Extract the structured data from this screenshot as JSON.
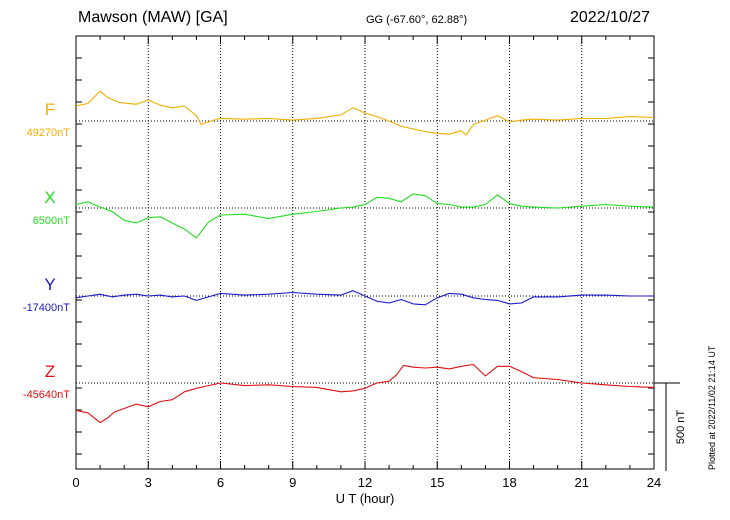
{
  "header": {
    "station": "Mawson (MAW)  [GA]",
    "coords": "GG (-67.60°,  62.88°)",
    "date": "2022/10/27"
  },
  "footer": {
    "plotted": "Plotted at 2022/11/02 21:14 UT"
  },
  "chart_data": {
    "type": "line",
    "xlabel": "U T (hour)",
    "xlim": [
      0,
      24
    ],
    "x_ticks": [
      0,
      3,
      6,
      9,
      12,
      15,
      18,
      21,
      24
    ],
    "scale_bar": {
      "value_nT": 500,
      "label": "500 nT"
    },
    "grid": true,
    "series": [
      {
        "name": "F",
        "baseline_label": "49270nT",
        "baseline": 49270,
        "color": "#f0b000",
        "x": [
          0,
          0.5,
          1,
          1.3,
          1.8,
          2.5,
          3,
          3.5,
          4,
          4.5,
          5,
          5.2,
          5.6,
          6,
          7,
          8,
          9,
          10,
          11,
          11.5,
          12,
          12.5,
          13,
          13.5,
          14,
          14.5,
          15,
          15.5,
          16,
          16.2,
          16.5,
          17,
          17.5,
          18,
          18.5,
          19,
          20,
          21,
          22,
          23,
          24
        ],
        "values": [
          49355,
          49370,
          49440,
          49405,
          49375,
          49365,
          49390,
          49360,
          49345,
          49355,
          49300,
          49250,
          49270,
          49285,
          49280,
          49285,
          49275,
          49285,
          49305,
          49345,
          49315,
          49295,
          49270,
          49240,
          49225,
          49210,
          49200,
          49195,
          49215,
          49190,
          49250,
          49275,
          49300,
          49265,
          49275,
          49280,
          49275,
          49285,
          49285,
          49295,
          49290
        ]
      },
      {
        "name": "X",
        "baseline_label": "6500nT",
        "baseline": 6500,
        "color": "#22dd22",
        "x": [
          0,
          0.5,
          1,
          1.5,
          2,
          2.5,
          3,
          3.5,
          4,
          4.5,
          5,
          5.5,
          6,
          7,
          8,
          9,
          10,
          11,
          11.5,
          12,
          12.5,
          13,
          13.5,
          14,
          14.5,
          15,
          15.5,
          16,
          16.5,
          17,
          17.5,
          18,
          18.5,
          19,
          20,
          21,
          22,
          23,
          24
        ],
        "values": [
          6520,
          6535,
          6505,
          6480,
          6430,
          6415,
          6445,
          6450,
          6415,
          6380,
          6330,
          6420,
          6460,
          6465,
          6440,
          6465,
          6480,
          6500,
          6505,
          6520,
          6560,
          6555,
          6535,
          6580,
          6570,
          6525,
          6520,
          6505,
          6505,
          6520,
          6575,
          6525,
          6510,
          6505,
          6500,
          6510,
          6520,
          6510,
          6505
        ]
      },
      {
        "name": "Y",
        "baseline_label": "-17400nT",
        "baseline": -17400,
        "color": "#1a1acc",
        "x": [
          0,
          0.5,
          1,
          1.5,
          2,
          2.5,
          3,
          3.5,
          4,
          4.5,
          5,
          5.5,
          6,
          7,
          8,
          9,
          10,
          11,
          11.5,
          12,
          12.5,
          13,
          13.5,
          14,
          14.5,
          15,
          15.5,
          16,
          16.5,
          17,
          17.5,
          18,
          18.5,
          19,
          20,
          21,
          22,
          23,
          24
        ],
        "values": [
          -17410,
          -17400,
          -17390,
          -17405,
          -17395,
          -17390,
          -17400,
          -17395,
          -17405,
          -17400,
          -17425,
          -17405,
          -17385,
          -17395,
          -17390,
          -17380,
          -17390,
          -17395,
          -17370,
          -17400,
          -17430,
          -17440,
          -17420,
          -17445,
          -17450,
          -17410,
          -17385,
          -17390,
          -17410,
          -17420,
          -17425,
          -17445,
          -17440,
          -17405,
          -17405,
          -17395,
          -17395,
          -17400,
          -17400
        ]
      },
      {
        "name": "Z",
        "baseline_label": "-45640nT",
        "baseline": -45640,
        "color": "#e01010",
        "x": [
          0,
          0.5,
          1,
          1.3,
          1.6,
          2,
          2.5,
          3,
          3.5,
          4,
          4.5,
          5,
          5.5,
          6,
          7,
          8,
          9,
          10,
          11,
          11.5,
          12,
          12.5,
          13,
          13.3,
          13.6,
          14,
          14.5,
          15,
          15.5,
          16,
          16.5,
          17,
          17.5,
          18,
          18.5,
          19,
          20,
          21,
          22,
          23,
          24
        ],
        "values": [
          -45795,
          -45810,
          -45865,
          -45840,
          -45805,
          -45785,
          -45760,
          -45775,
          -45745,
          -45735,
          -45690,
          -45670,
          -45655,
          -45640,
          -45655,
          -45650,
          -45660,
          -45665,
          -45690,
          -45685,
          -45670,
          -45640,
          -45630,
          -45595,
          -45540,
          -45550,
          -45555,
          -45550,
          -45560,
          -45545,
          -45535,
          -45600,
          -45545,
          -45545,
          -45575,
          -45610,
          -45620,
          -45640,
          -45650,
          -45660,
          -45665
        ]
      }
    ]
  }
}
